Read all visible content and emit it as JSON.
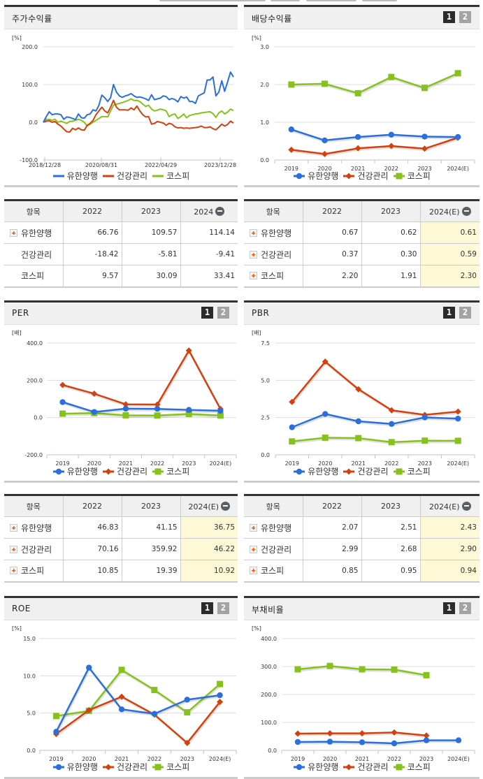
{
  "colors": {
    "series1": "#2a6fdb",
    "series2": "#d2410e",
    "series3": "#86c21e",
    "est_bg": "#fdf8d6",
    "header_bg": "#f0f0f0"
  },
  "legend": [
    "유한양행",
    "건강관리",
    "코스피"
  ],
  "pager": [
    "1",
    "2"
  ],
  "panels": {
    "stock_return": {
      "title": "주가수익률",
      "unit": "[%]",
      "yticks": [
        "200.0",
        "100.0",
        "0.0",
        "-100.0"
      ],
      "xticks": [
        "2018/12/28",
        "2020/08/31",
        "2022/04/29",
        "2023/12/28"
      ]
    },
    "dividend": {
      "title": "배당수익률",
      "unit": "[%]",
      "yticks": [
        "3.0",
        "2.0",
        "1.0",
        "0.0"
      ],
      "xticks": [
        "2019",
        "2020",
        "2021",
        "2022",
        "2023",
        "2024(E)"
      ]
    },
    "per": {
      "title": "PER",
      "unit": "[배]",
      "yticks": [
        "400.0",
        "200.0",
        "0.0",
        "-200.0"
      ],
      "xticks": [
        "2019",
        "2020",
        "2021",
        "2022",
        "2023",
        "2024(E)"
      ]
    },
    "pbr": {
      "title": "PBR",
      "unit": "[배]",
      "yticks": [
        "7.5",
        "5.0",
        "2.5",
        "0.0"
      ],
      "xticks": [
        "2019",
        "2020",
        "2021",
        "2022",
        "2023",
        "2024(E)"
      ]
    },
    "roe": {
      "title": "ROE",
      "unit": "[%]",
      "yticks": [
        "15.0",
        "10.0",
        "5.0",
        "0.0"
      ],
      "xticks": [
        "2019",
        "2020",
        "2021",
        "2022",
        "2023",
        "2024(E)"
      ]
    },
    "debt": {
      "title": "부채비율",
      "unit": "[%]",
      "yticks": [
        "400.0",
        "300.0",
        "200.0",
        "100.0",
        "0.0"
      ],
      "xticks": [
        "2019",
        "2020",
        "2021",
        "2022",
        "2023",
        "2024(E)"
      ]
    }
  },
  "tables": {
    "stock_return": {
      "headers": [
        "항목",
        "2022",
        "2023",
        "2024"
      ],
      "rows": [
        {
          "name": "유한양행",
          "values": [
            "66.76",
            "109.57",
            "114.14"
          ]
        },
        {
          "name": "건강관리",
          "values": [
            "-18.42",
            "-5.81",
            "-9.41"
          ]
        },
        {
          "name": "코스피",
          "values": [
            "9.57",
            "30.09",
            "33.41"
          ]
        }
      ]
    },
    "dividend": {
      "headers": [
        "항목",
        "2022",
        "2023",
        "2024(E)"
      ],
      "rows": [
        {
          "name": "유한양행",
          "values": [
            "0.67",
            "0.62",
            "0.61"
          ]
        },
        {
          "name": "건강관리",
          "values": [
            "0.37",
            "0.30",
            "0.59"
          ]
        },
        {
          "name": "코스피",
          "values": [
            "2.20",
            "1.91",
            "2.30"
          ]
        }
      ]
    },
    "per": {
      "headers": [
        "항목",
        "2022",
        "2023",
        "2024(E)"
      ],
      "rows": [
        {
          "name": "유한양행",
          "values": [
            "46.83",
            "41.15",
            "36.75"
          ]
        },
        {
          "name": "건강관리",
          "values": [
            "70.16",
            "359.92",
            "46.22"
          ]
        },
        {
          "name": "코스피",
          "values": [
            "10.85",
            "19.39",
            "10.92"
          ]
        }
      ]
    },
    "pbr": {
      "headers": [
        "항목",
        "2022",
        "2023",
        "2024(E)"
      ],
      "rows": [
        {
          "name": "유한양행",
          "values": [
            "2.07",
            "2.51",
            "2.43"
          ]
        },
        {
          "name": "건강관리",
          "values": [
            "2.99",
            "2.68",
            "2.90"
          ]
        },
        {
          "name": "코스피",
          "values": [
            "0.85",
            "0.95",
            "0.94"
          ]
        }
      ]
    }
  },
  "chart_data": [
    {
      "type": "line",
      "title": "주가수익률",
      "ylabel": "[%]",
      "ylim": [
        -100,
        200
      ],
      "xticks": [
        "2018/12/28",
        "2020/08/31",
        "2022/04/29",
        "2023/12/28"
      ],
      "grid": true,
      "legend_position": "bottom",
      "series": [
        {
          "name": "유한양행",
          "values": [
            0,
            15,
            28,
            20,
            22,
            22,
            20,
            8,
            14,
            13,
            10,
            7,
            22,
            12,
            11,
            20,
            22,
            33,
            30,
            45,
            72,
            65,
            55,
            65,
            100,
            80,
            70,
            66,
            70,
            72,
            76,
            70,
            66,
            67,
            65,
            62,
            58,
            73,
            60,
            62,
            64,
            70,
            68,
            60,
            63,
            60,
            54,
            68,
            64,
            67,
            55,
            55,
            50,
            70,
            74,
            78,
            112,
            112,
            120,
            70,
            80,
            110,
            82,
            107,
            133,
            120
          ]
        },
        {
          "name": "건강관리",
          "values": [
            0,
            3,
            4,
            0,
            2,
            -5,
            -10,
            -18,
            -25,
            -26,
            -16,
            -20,
            -15,
            -20,
            -21,
            -8,
            -3,
            5,
            20,
            30,
            40,
            30,
            25,
            40,
            58,
            40,
            33,
            33,
            33,
            32,
            38,
            33,
            43,
            30,
            20,
            14,
            15,
            -5,
            -3,
            2,
            0,
            -2,
            -8,
            -3,
            -5,
            -12,
            -15,
            -14,
            -16,
            -15,
            -16,
            -15,
            -14,
            -13,
            -10,
            -14,
            -14,
            -12,
            -17,
            -20,
            -13,
            -5,
            -10,
            -6,
            3,
            -2
          ]
        },
        {
          "name": "코스피",
          "values": [
            0,
            8,
            8,
            5,
            8,
            0,
            3,
            0,
            -3,
            2,
            3,
            5,
            8,
            5,
            0,
            -10,
            -5,
            0,
            5,
            10,
            15,
            15,
            14,
            30,
            45,
            48,
            50,
            52,
            55,
            58,
            62,
            58,
            58,
            55,
            48,
            42,
            45,
            35,
            30,
            32,
            35,
            33,
            30,
            15,
            20,
            22,
            10,
            15,
            22,
            12,
            18,
            20,
            22,
            23,
            25,
            26,
            27,
            28,
            23,
            13,
            25,
            30,
            22,
            27,
            35,
            31
          ]
        }
      ]
    },
    {
      "type": "line",
      "title": "배당수익률",
      "ylabel": "[%]",
      "ylim": [
        0,
        3
      ],
      "categories": [
        "2019",
        "2020",
        "2021",
        "2022",
        "2023",
        "2024(E)"
      ],
      "grid": true,
      "legend_position": "bottom",
      "series": [
        {
          "name": "유한양행",
          "values": [
            0.81,
            0.52,
            0.61,
            0.67,
            0.62,
            0.61
          ]
        },
        {
          "name": "건강관리",
          "values": [
            0.27,
            0.16,
            0.31,
            0.37,
            0.3,
            0.59
          ]
        },
        {
          "name": "코스피",
          "values": [
            2.0,
            2.02,
            1.77,
            2.2,
            1.91,
            2.3
          ]
        }
      ]
    },
    {
      "type": "line",
      "title": "PER",
      "ylabel": "[배]",
      "ylim": [
        -200,
        400
      ],
      "categories": [
        "2019",
        "2020",
        "2021",
        "2022",
        "2023",
        "2024(E)"
      ],
      "grid": true,
      "legend_position": "bottom",
      "series": [
        {
          "name": "유한양행",
          "values": [
            83,
            30,
            48,
            46.83,
            41.15,
            36.75
          ]
        },
        {
          "name": "건강관리",
          "values": [
            175,
            128,
            71,
            70.16,
            359.92,
            46.22
          ]
        },
        {
          "name": "코스피",
          "values": [
            21,
            24,
            12,
            10.85,
            19.39,
            10.92
          ]
        }
      ]
    },
    {
      "type": "line",
      "title": "PBR",
      "ylabel": "[배]",
      "ylim": [
        0,
        7.5
      ],
      "categories": [
        "2019",
        "2020",
        "2021",
        "2022",
        "2023",
        "2024(E)"
      ],
      "grid": true,
      "legend_position": "bottom",
      "series": [
        {
          "name": "유한양행",
          "values": [
            1.85,
            2.74,
            2.25,
            2.07,
            2.51,
            2.43
          ]
        },
        {
          "name": "건강관리",
          "values": [
            3.55,
            6.25,
            4.4,
            2.99,
            2.68,
            2.9
          ]
        },
        {
          "name": "코스피",
          "values": [
            0.9,
            1.15,
            1.12,
            0.85,
            0.95,
            0.94
          ]
        }
      ]
    },
    {
      "type": "line",
      "title": "ROE",
      "ylabel": "[%]",
      "ylim": [
        0,
        15
      ],
      "categories": [
        "2019",
        "2020",
        "2021",
        "2022",
        "2023",
        "2024(E)"
      ],
      "grid": true,
      "legend_position": "bottom",
      "series": [
        {
          "name": "유한양행",
          "values": [
            2.5,
            11.1,
            5.5,
            4.9,
            6.8,
            7.4
          ]
        },
        {
          "name": "건강관리",
          "values": [
            2.2,
            5.4,
            7.2,
            4.8,
            1.0,
            6.5
          ]
        },
        {
          "name": "코스피",
          "values": [
            4.6,
            5.3,
            10.8,
            8.1,
            5.1,
            8.9
          ]
        }
      ]
    },
    {
      "type": "line",
      "title": "부채비율",
      "ylabel": "[%]",
      "ylim": [
        0,
        400
      ],
      "categories": [
        "2019",
        "2020",
        "2021",
        "2022",
        "2023",
        "2024(E)"
      ],
      "grid": true,
      "legend_position": "bottom",
      "series": [
        {
          "name": "유한양행",
          "values": [
            30,
            31,
            29,
            25,
            36,
            36
          ]
        },
        {
          "name": "건강관리",
          "values": [
            60,
            61,
            61,
            64,
            53,
            null
          ]
        },
        {
          "name": "코스피",
          "values": [
            290,
            302,
            290,
            289,
            269,
            null
          ]
        }
      ]
    }
  ]
}
